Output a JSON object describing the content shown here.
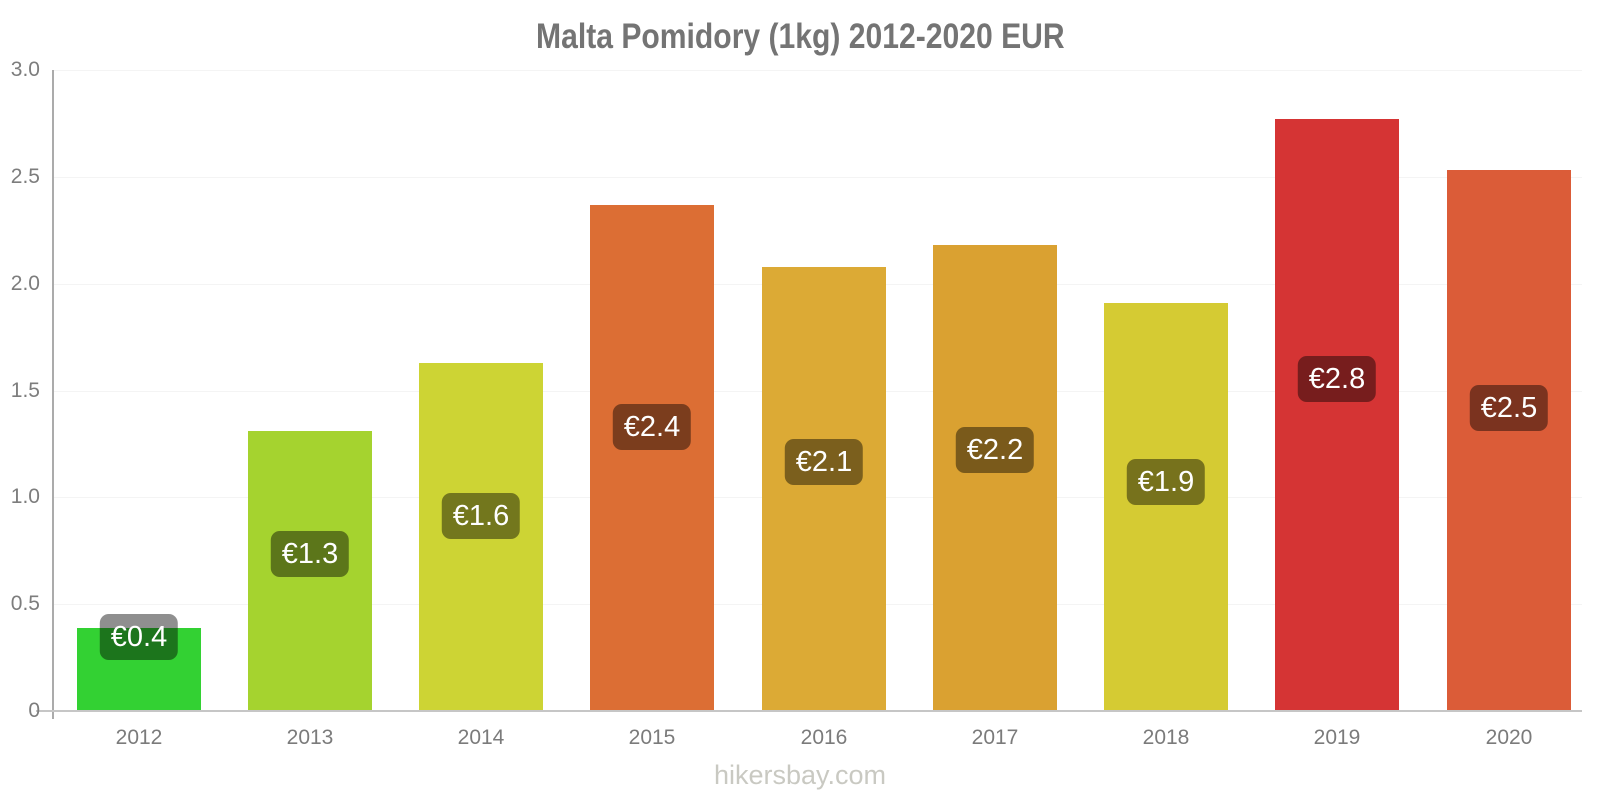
{
  "title": "Malta Pomidory (1kg) 2012-2020 EUR",
  "watermark": "hikersbay.com",
  "chart_data": {
    "type": "bar",
    "title": "Malta Pomidory (1kg) 2012-2020 EUR",
    "xlabel": "",
    "ylabel": "",
    "currency": "EUR",
    "ylim": [
      0,
      3
    ],
    "grid": true,
    "legend": false,
    "categories": [
      "2012",
      "2013",
      "2014",
      "2015",
      "2016",
      "2017",
      "2018",
      "2019",
      "2020"
    ],
    "values": [
      0.39,
      1.31,
      1.63,
      2.37,
      2.08,
      2.18,
      1.91,
      2.77,
      2.53
    ],
    "labels": [
      "€0.4",
      "€1.3",
      "€1.6",
      "€2.4",
      "€2.1",
      "€2.2",
      "€1.9",
      "€2.8",
      "€2.5"
    ],
    "bar_colors": [
      "#33d133",
      "#a5d32f",
      "#cdd434",
      "#dc6e34",
      "#dcaa35",
      "#daa131",
      "#d5cb33",
      "#d53434",
      "#db5c38"
    ],
    "ytick_labels": [
      "3.0",
      "2.5",
      "2.0",
      "1.5",
      "1.0",
      "0.5",
      "0"
    ],
    "ytick_values": [
      3.0,
      2.5,
      2.0,
      1.5,
      1.0,
      0.5,
      0
    ],
    "label_badge_color": "rgba(0,0,0,0.44)",
    "label_text_color": "#ffffff",
    "axis_color": "#c6c6c6",
    "text_color": "#7b7b7b"
  }
}
